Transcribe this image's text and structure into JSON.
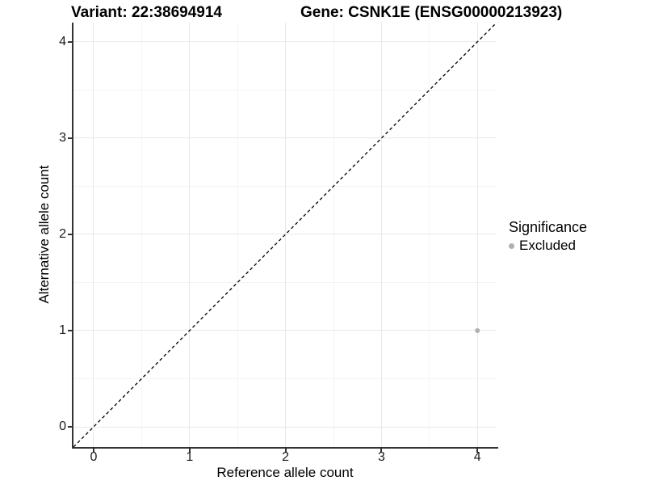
{
  "chart_data": {
    "type": "scatter",
    "title_left": "Variant: 22:38694914",
    "title_right": "Gene: CSNK1E (ENSG00000213923)",
    "xlabel": "Reference allele count",
    "ylabel": "Alternative allele count",
    "xlim": [
      -0.21,
      4.2
    ],
    "ylim": [
      -0.21,
      4.2
    ],
    "xticks": [
      0,
      1,
      2,
      3,
      4
    ],
    "yticks": [
      0,
      1,
      2,
      3,
      4
    ],
    "x_minor_ticks": [
      0.5,
      1.5,
      2.5,
      3.5
    ],
    "y_minor_ticks": [
      0.5,
      1.5,
      2.5,
      3.5
    ],
    "grid": "major and minor gridlines on white background",
    "identity_line": {
      "style": "dashed",
      "color": "#000000",
      "from": [
        -0.21,
        -0.21
      ],
      "to": [
        4.2,
        4.2
      ]
    },
    "series": [
      {
        "name": "Excluded",
        "color": "#b0b0b0",
        "point_radius_px": 3,
        "points": [
          {
            "x": 4,
            "y": 1
          }
        ]
      }
    ],
    "legend": {
      "title": "Significance",
      "position": "right",
      "items": [
        {
          "label": "Excluded",
          "color": "#b0b0b0"
        }
      ]
    }
  },
  "colors": {
    "background": "#ffffff",
    "grid_major": "#e8e8e8",
    "grid_minor": "#f4f4f4",
    "axis_line": "#333333",
    "tick_text": "#1a1a1a",
    "title_text": "#000000"
  }
}
